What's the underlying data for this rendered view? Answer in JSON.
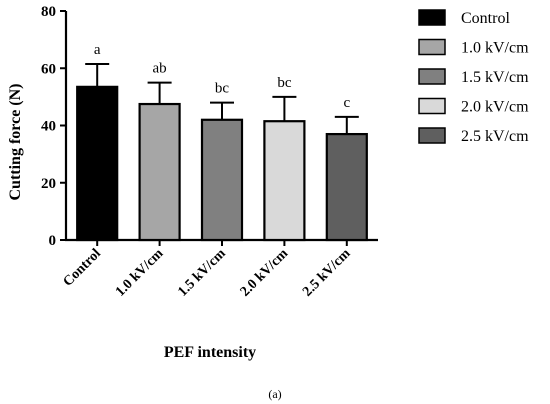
{
  "chart_data": {
    "type": "bar",
    "categories": [
      "Control",
      "1.0 kV/cm",
      "1.5 kV/cm",
      "2.0 kV/cm",
      "2.5 kV/cm"
    ],
    "values": [
      53.5,
      47.5,
      42.0,
      41.5,
      37.0
    ],
    "errors": [
      8.0,
      7.5,
      6.0,
      8.5,
      6.0
    ],
    "significance": [
      "a",
      "ab",
      "bc",
      "bc",
      "c"
    ],
    "colors": [
      "#000000",
      "#a6a6a6",
      "#808080",
      "#d9d9d9",
      "#5f5f5f"
    ],
    "xlabel": "PEF intensity",
    "ylabel": "Cutting force (N)",
    "ylim": [
      0,
      80
    ],
    "yticks": [
      0,
      20,
      40,
      60,
      80
    ],
    "grid": false,
    "legend": {
      "position": "right",
      "entries": [
        "Control",
        "1.0 kV/cm",
        "1.5 kV/cm",
        "2.0 kV/cm",
        "2.5 kV/cm"
      ]
    },
    "caption": "(a)"
  }
}
